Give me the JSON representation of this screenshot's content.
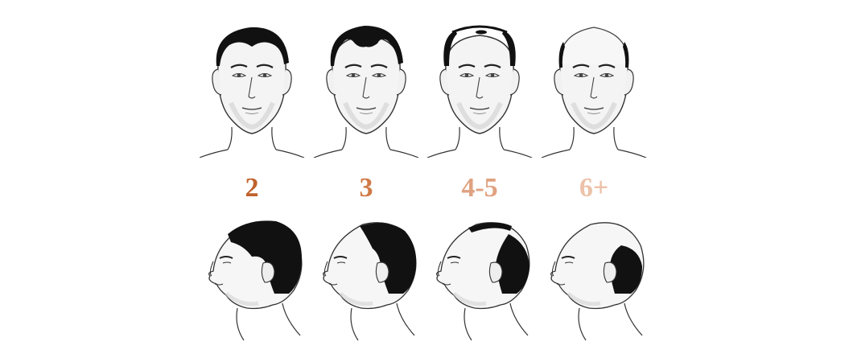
{
  "stages": [
    {
      "label": "2",
      "color": "#c0622b",
      "front_icon": "male-face-front-norwood-2-icon",
      "side_icon": "male-head-profile-norwood-2-icon"
    },
    {
      "label": "3",
      "color": "#cf7a47",
      "front_icon": "male-face-front-norwood-3-icon",
      "side_icon": "male-head-profile-norwood-3-icon"
    },
    {
      "label": "4-5",
      "color": "#e0a281",
      "front_icon": "male-face-front-norwood-4-5-icon",
      "side_icon": "male-head-profile-norwood-4-5-icon"
    },
    {
      "label": "6+",
      "color": "#ecc2a9",
      "front_icon": "male-face-front-norwood-6-icon",
      "side_icon": "male-head-profile-norwood-6-icon"
    }
  ]
}
